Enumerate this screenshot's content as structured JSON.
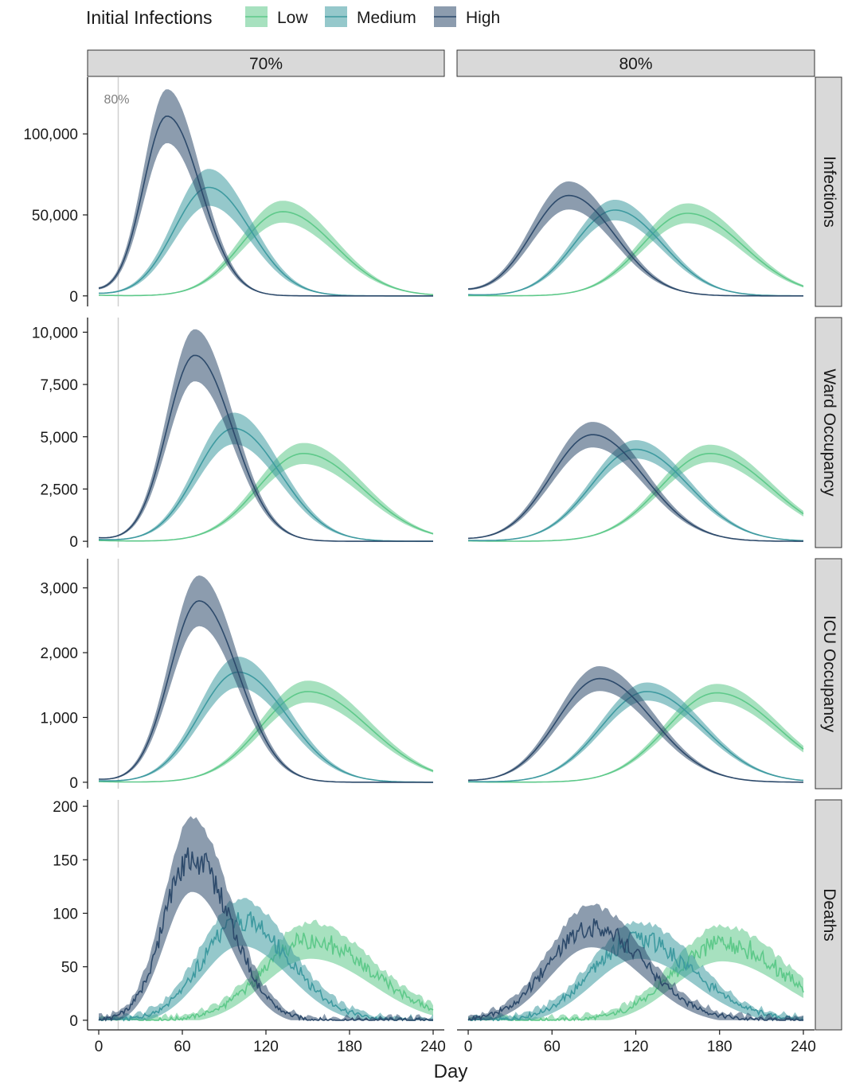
{
  "chart_data": {
    "type": "line",
    "legend": {
      "title": "Initial Infections",
      "placement": "top-left",
      "items": [
        {
          "label": "Low",
          "color": "#5ec98a"
        },
        {
          "label": "Medium",
          "color": "#3e9aa0"
        },
        {
          "label": "High",
          "color": "#2d4a6b"
        }
      ]
    },
    "xlabel": "Day",
    "xlim": [
      -8,
      248
    ],
    "xticks": [
      0,
      60,
      120,
      180,
      240
    ],
    "columns": [
      "70%",
      "80%"
    ],
    "reference_line": {
      "x": 14,
      "label": "80%",
      "color": "#d0d0d0"
    },
    "grid": false,
    "rows": [
      {
        "name": "Infections",
        "ylim": [
          -6500,
          135000
        ],
        "yticks": [
          0,
          50000,
          100000
        ],
        "ytick_labels": [
          "0",
          "50,000",
          "100,000"
        ],
        "panels": [
          {
            "column": "70%",
            "series": [
              {
                "name": "Low",
                "peak_day": 132,
                "peak": 52000,
                "lower_w": 30,
                "upper_w": 37,
                "band": 0.13,
                "start": 400
              },
              {
                "name": "Medium",
                "peak_day": 79,
                "peak": 67000,
                "lower_w": 25,
                "upper_w": 30,
                "band": 0.17,
                "start": 1200
              },
              {
                "name": "High",
                "peak_day": 49,
                "peak": 111000,
                "lower_w": 17,
                "upper_w": 24,
                "band": 0.15,
                "start": 3000
              }
            ]
          },
          {
            "column": "80%",
            "series": [
              {
                "name": "Low",
                "peak_day": 157,
                "peak": 51000,
                "lower_w": 33,
                "upper_w": 40,
                "band": 0.12,
                "start": 200
              },
              {
                "name": "Medium",
                "peak_day": 105,
                "peak": 53000,
                "lower_w": 29,
                "upper_w": 34,
                "band": 0.12,
                "start": 700
              },
              {
                "name": "High",
                "peak_day": 72,
                "peak": 62000,
                "lower_w": 27,
                "upper_w": 33,
                "band": 0.14,
                "start": 2500
              }
            ]
          }
        ]
      },
      {
        "name": "Ward Occupancy",
        "ylim": [
          -300,
          10700
        ],
        "yticks": [
          0,
          2500,
          5000,
          7500,
          10000
        ],
        "ytick_labels": [
          "0",
          "2,500",
          "5,000",
          "7,500",
          "10,000"
        ],
        "panels": [
          {
            "column": "70%",
            "series": [
              {
                "name": "Low",
                "peak_day": 147,
                "peak": 4200,
                "lower_w": 33,
                "upper_w": 42,
                "band": 0.12,
                "start": 40
              },
              {
                "name": "Medium",
                "peak_day": 97,
                "peak": 5400,
                "lower_w": 27,
                "upper_w": 33,
                "band": 0.14,
                "start": 80
              },
              {
                "name": "High",
                "peak_day": 69,
                "peak": 8900,
                "lower_w": 20,
                "upper_w": 27,
                "band": 0.14,
                "start": 150
              }
            ]
          },
          {
            "column": "80%",
            "series": [
              {
                "name": "Low",
                "peak_day": 173,
                "peak": 4200,
                "lower_w": 36,
                "upper_w": 44,
                "band": 0.1,
                "start": 20
              },
              {
                "name": "Medium",
                "peak_day": 120,
                "peak": 4400,
                "lower_w": 32,
                "upper_w": 38,
                "band": 0.1,
                "start": 40
              },
              {
                "name": "High",
                "peak_day": 89,
                "peak": 5100,
                "lower_w": 30,
                "upper_w": 37,
                "band": 0.12,
                "start": 80
              }
            ]
          }
        ]
      },
      {
        "name": "ICU Occupancy",
        "ylim": [
          -100,
          3450
        ],
        "yticks": [
          0,
          1000,
          2000,
          3000
        ],
        "ytick_labels": [
          "0",
          "1,000",
          "2,000",
          "3,000"
        ],
        "panels": [
          {
            "column": "70%",
            "series": [
              {
                "name": "Low",
                "peak_day": 150,
                "peak": 1400,
                "lower_w": 34,
                "upper_w": 44,
                "band": 0.12,
                "start": 10
              },
              {
                "name": "Medium",
                "peak_day": 100,
                "peak": 1700,
                "lower_w": 28,
                "upper_w": 35,
                "band": 0.14,
                "start": 20
              },
              {
                "name": "High",
                "peak_day": 72,
                "peak": 2800,
                "lower_w": 21,
                "upper_w": 28,
                "band": 0.14,
                "start": 40
              }
            ]
          },
          {
            "column": "80%",
            "series": [
              {
                "name": "Low",
                "peak_day": 178,
                "peak": 1380,
                "lower_w": 36,
                "upper_w": 44,
                "band": 0.1,
                "start": 5
              },
              {
                "name": "Medium",
                "peak_day": 128,
                "peak": 1400,
                "lower_w": 33,
                "upper_w": 40,
                "band": 0.1,
                "start": 10
              },
              {
                "name": "High",
                "peak_day": 94,
                "peak": 1600,
                "lower_w": 30,
                "upper_w": 38,
                "band": 0.12,
                "start": 20
              }
            ]
          }
        ]
      },
      {
        "name": "Deaths",
        "ylim": [
          -9,
          206
        ],
        "yticks": [
          0,
          50,
          100,
          150,
          200
        ],
        "ytick_labels": [
          "0",
          "50",
          "100",
          "150",
          "200"
        ],
        "panels": [
          {
            "column": "70%",
            "series": [
              {
                "name": "Low",
                "peak_day": 152,
                "peak": 75,
                "lower_w": 34,
                "upper_w": 44,
                "band": 0.18,
                "start": 0,
                "noise": 0.12
              },
              {
                "name": "Medium",
                "peak_day": 102,
                "peak": 92,
                "lower_w": 28,
                "upper_w": 35,
                "band": 0.2,
                "start": 0,
                "noise": 0.12
              },
              {
                "name": "High",
                "peak_day": 67,
                "peak": 155,
                "lower_w": 20,
                "upper_w": 27,
                "band": 0.2,
                "start": 0,
                "noise": 0.1
              }
            ]
          },
          {
            "column": "80%",
            "series": [
              {
                "name": "Low",
                "peak_day": 182,
                "peak": 72,
                "lower_w": 35,
                "upper_w": 44,
                "band": 0.18,
                "start": 0,
                "noise": 0.13
              },
              {
                "name": "Medium",
                "peak_day": 122,
                "peak": 75,
                "lower_w": 33,
                "upper_w": 40,
                "band": 0.18,
                "start": 0,
                "noise": 0.13
              },
              {
                "name": "High",
                "peak_day": 88,
                "peak": 88,
                "lower_w": 30,
                "upper_w": 38,
                "band": 0.18,
                "start": 0,
                "noise": 0.12
              }
            ]
          }
        ]
      }
    ]
  }
}
